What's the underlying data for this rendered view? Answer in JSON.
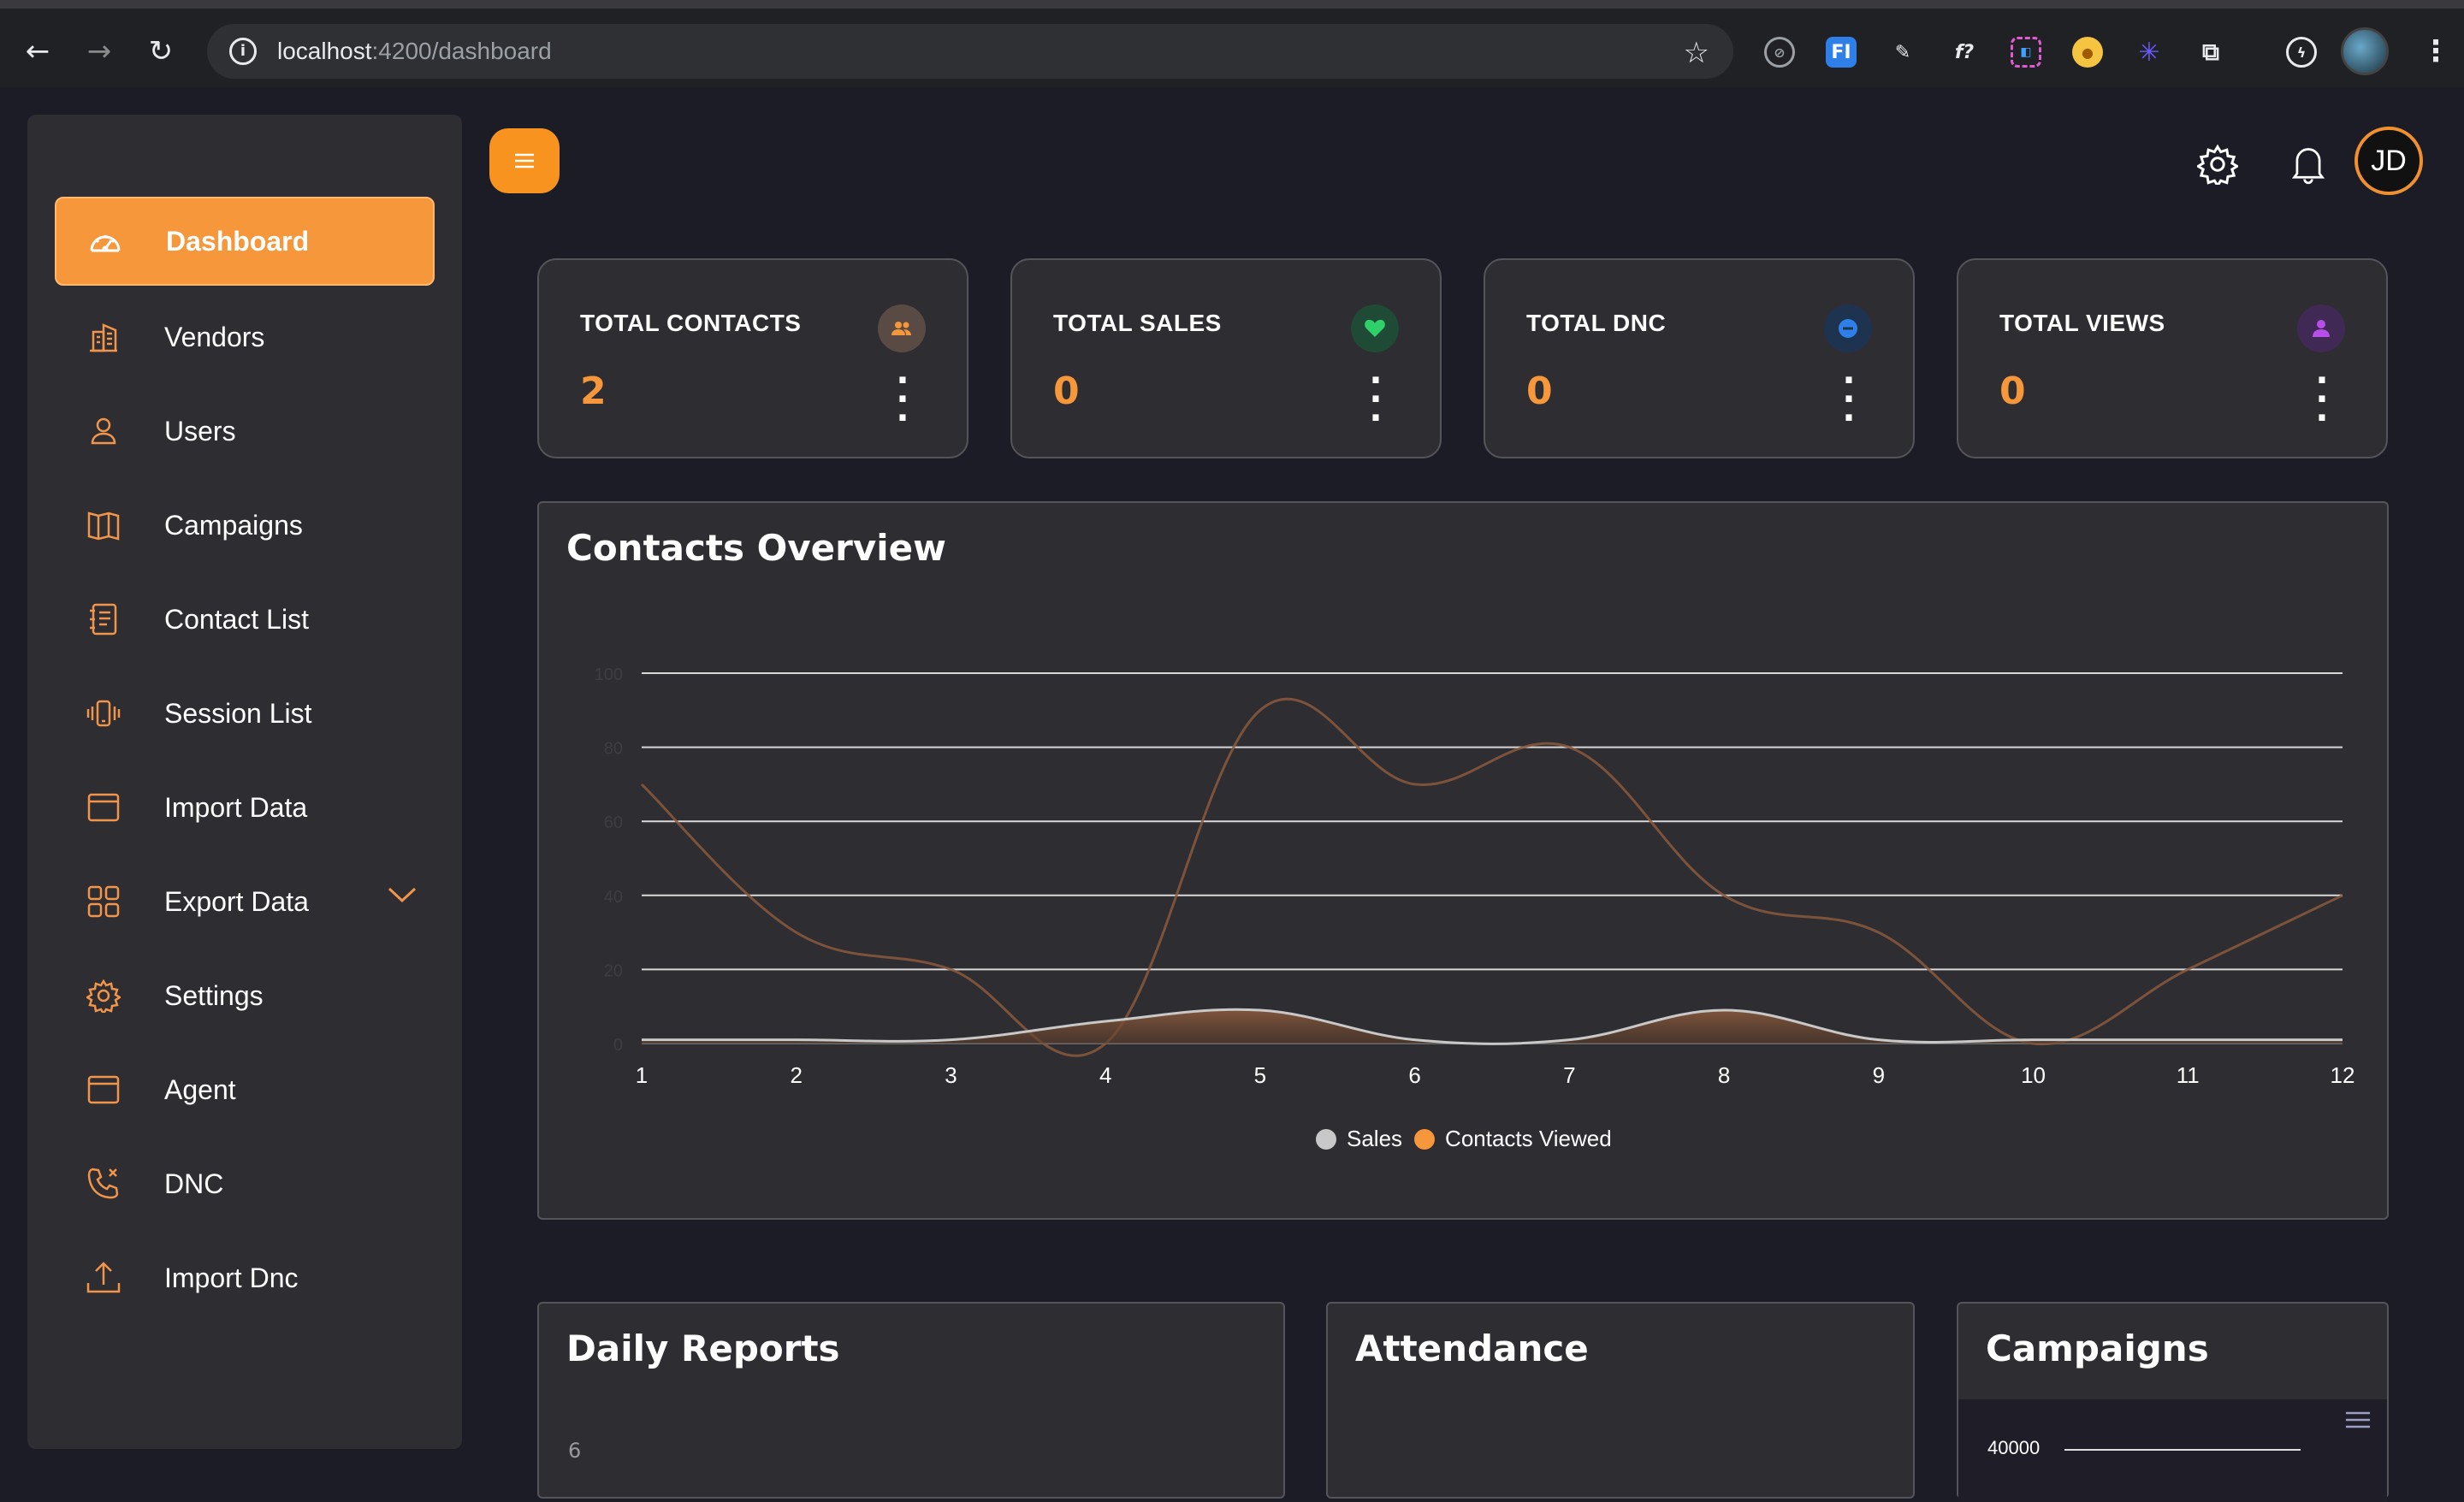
{
  "browser": {
    "url_host": "localhost",
    "url_path": ":4200/dashboard"
  },
  "sidebar": {
    "items": [
      {
        "label": "Dashboard",
        "icon": "gauge-icon",
        "active": true
      },
      {
        "label": "Vendors",
        "icon": "building-icon"
      },
      {
        "label": "Users",
        "icon": "user-icon"
      },
      {
        "label": "Campaigns",
        "icon": "map-icon"
      },
      {
        "label": "Contact List",
        "icon": "notebook-icon"
      },
      {
        "label": "Session List",
        "icon": "phone-vibrate-icon"
      },
      {
        "label": "Import Data",
        "icon": "window-icon"
      },
      {
        "label": "Export Data",
        "icon": "grid-icon",
        "has_submenu": true
      },
      {
        "label": "Settings",
        "icon": "gear-icon"
      },
      {
        "label": "Agent",
        "icon": "window-icon"
      },
      {
        "label": "DNC",
        "icon": "phone-cancel-icon"
      },
      {
        "label": "Import Dnc",
        "icon": "upload-icon"
      }
    ]
  },
  "header": {
    "avatar_initials": "JD"
  },
  "stats": [
    {
      "title": "TOTAL CONTACTS",
      "value": "2",
      "badge_color": "#5a4a44",
      "icon_color": "#f5973a",
      "icon": "users-icon"
    },
    {
      "title": "TOTAL SALES",
      "value": "0",
      "badge_color": "#1f4a35",
      "icon_color": "#2fd06a",
      "icon": "heart-icon"
    },
    {
      "title": "TOTAL DNC",
      "value": "0",
      "badge_color": "#1e3350",
      "icon_color": "#2f7fe8",
      "icon": "minus-circle-icon"
    },
    {
      "title": "TOTAL VIEWS",
      "value": "0",
      "badge_color": "#402a55",
      "icon_color": "#b64ee8",
      "icon": "user-icon"
    }
  ],
  "overview": {
    "title": "Contacts Overview"
  },
  "chart_data": {
    "type": "area",
    "x": [
      1,
      2,
      3,
      4,
      5,
      6,
      7,
      8,
      9,
      10,
      11,
      12
    ],
    "ylim": [
      0,
      100
    ],
    "yticks": [
      0,
      20,
      40,
      60,
      80,
      100
    ],
    "series": [
      {
        "name": "Sales",
        "color": "#c8c8c8",
        "values": [
          1,
          1,
          1,
          6,
          9,
          1,
          1,
          9,
          1,
          1,
          1,
          1
        ]
      },
      {
        "name": "Contacts Viewed",
        "color": "#8a5a3c",
        "values": [
          70,
          30,
          20,
          0,
          90,
          70,
          80,
          40,
          30,
          0,
          20,
          40
        ]
      }
    ],
    "grid": true,
    "legend": "bottom-center"
  },
  "panels": {
    "daily_reports": {
      "title": "Daily Reports",
      "ytick": "6"
    },
    "attendance": {
      "title": "Attendance"
    },
    "campaigns": {
      "title": "Campaigns",
      "ytick": "40000"
    }
  }
}
